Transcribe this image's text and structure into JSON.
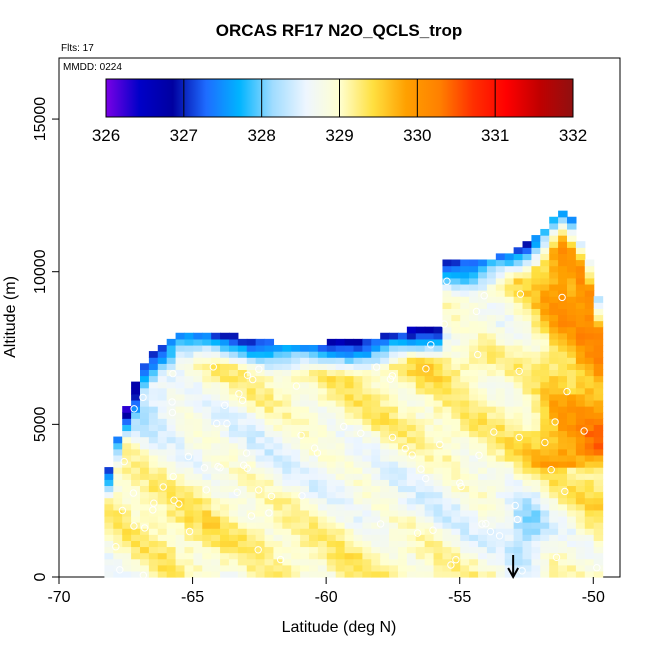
{
  "chart_data": {
    "type": "heatmap",
    "title": "ORCAS RF17 N2O_QCLS_trop",
    "subtitle_flights": "Flts: 17",
    "subtitle_date": "MMDD: 0224",
    "xlabel": "Latitude (deg N)",
    "ylabel": "Altitude (m)",
    "xlim": [
      -70,
      -49
    ],
    "ylim": [
      0,
      17000
    ],
    "x_ticks": [
      -70,
      -65,
      -60,
      -55,
      -50
    ],
    "x_tick_labels": [
      "-70",
      "-65",
      "-60",
      "-55",
      "-50"
    ],
    "y_ticks": [
      0,
      5000,
      10000,
      15000
    ],
    "y_tick_labels": [
      "0",
      "5000",
      "10000",
      "15000"
    ],
    "colorbar": {
      "min": 326,
      "max": 332,
      "ticks": [
        326,
        327,
        328,
        329,
        330,
        331,
        332
      ],
      "tick_labels": [
        "326",
        "327",
        "328",
        "329",
        "330",
        "331",
        "332"
      ],
      "colors": [
        "#7a00e6",
        "#0000c8",
        "#0000a0",
        "#1e6cff",
        "#00b4ff",
        "#a0dcff",
        "#eef6ff",
        "#ffffd0",
        "#ffe040",
        "#ffa000",
        "#ff8000",
        "#ff3000",
        "#ff0000",
        "#c00000",
        "#901010"
      ]
    },
    "grid": false,
    "legend": "colorbar top",
    "flight_arrow_latitude": -53
  }
}
